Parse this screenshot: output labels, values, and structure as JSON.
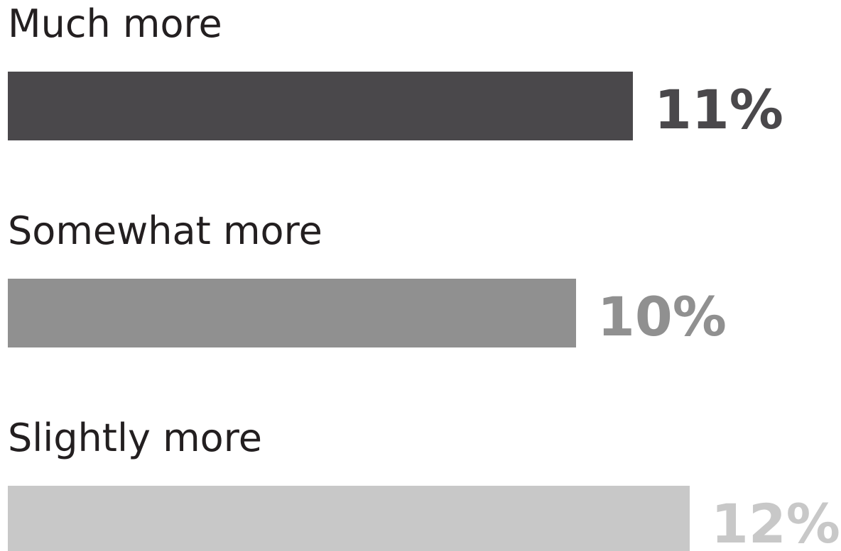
{
  "chart_data": {
    "type": "bar",
    "orientation": "horizontal",
    "categories": [
      "Much more",
      "Somewhat more",
      "Slightly more"
    ],
    "values": [
      11,
      10,
      12
    ],
    "value_labels": [
      "11%",
      "10%",
      "12%"
    ],
    "unit": "%",
    "colors": [
      "#4a484b",
      "#909090",
      "#c8c8c8"
    ],
    "title": "",
    "xlabel": "",
    "ylabel": "",
    "xlim": [
      0,
      12
    ],
    "grid": false,
    "legend": "none"
  }
}
